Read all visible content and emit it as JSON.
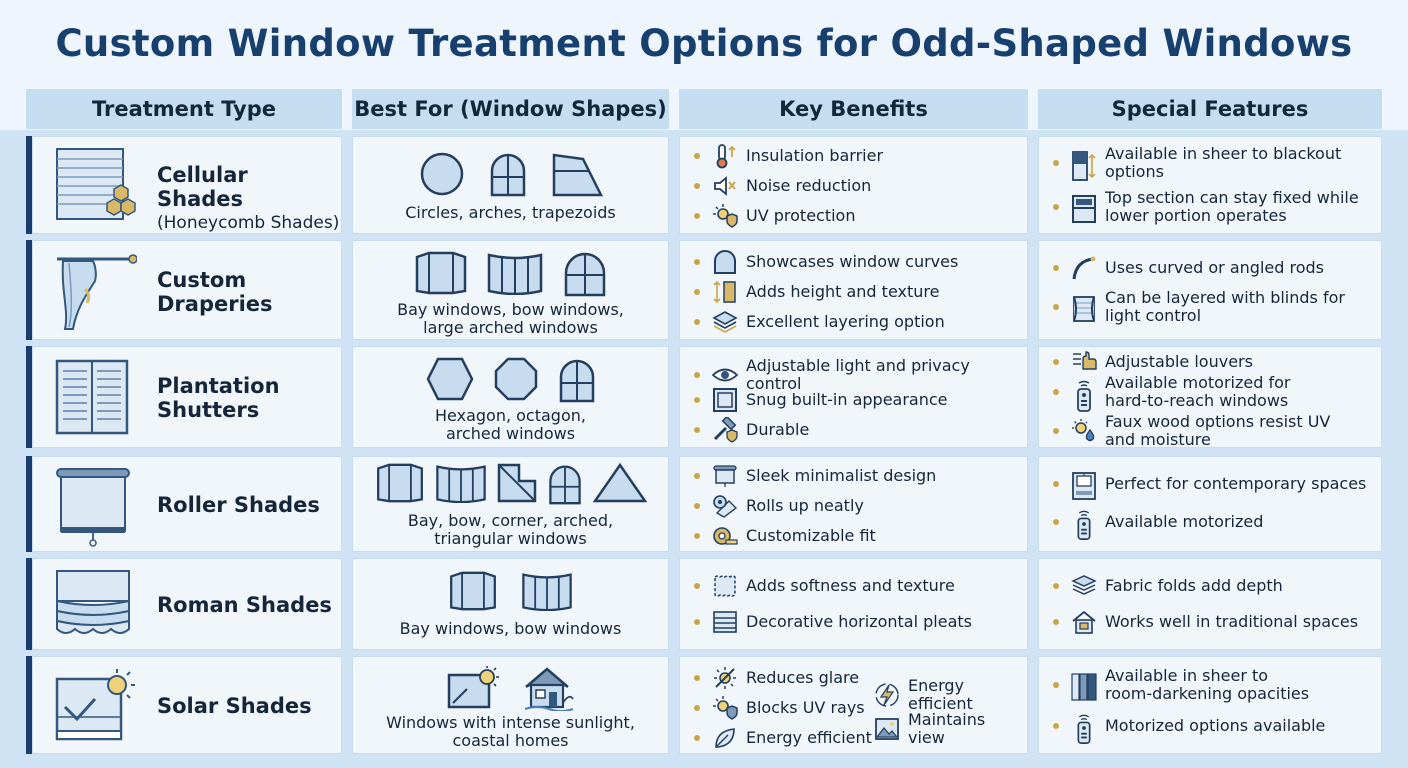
{
  "title": "Custom Window Treatment Options for Odd-Shaped Windows",
  "headers": [
    "Treatment Type",
    "Best For (Window Shapes)",
    "Key Benefits",
    "Special Features"
  ],
  "rows": [
    {
      "name": "Cellular Shades",
      "subname": "(Honeycomb Shades)",
      "shapes_caption": [
        "Circles, arches, trapezoids"
      ],
      "benefits": [
        "Insulation barrier",
        "Noise reduction",
        "UV protection"
      ],
      "features": [
        [
          "Available in sheer to blackout",
          "options"
        ],
        [
          "Top section can stay fixed while",
          "lower portion operates"
        ]
      ]
    },
    {
      "name": "Custom",
      "subname": "Draperies",
      "shapes_caption": [
        "Bay windows, bow windows,",
        "large arched windows"
      ],
      "benefits": [
        "Showcases window curves",
        "Adds height and texture",
        "Excellent layering option"
      ],
      "features": [
        [
          "Uses curved or angled rods"
        ],
        [
          "Can be layered with blinds for",
          "light control"
        ]
      ]
    },
    {
      "name": "Plantation",
      "subname": "Shutters",
      "shapes_caption": [
        "Hexagon, octagon,",
        "arched windows"
      ],
      "benefits": [
        "Adjustable light and privacy control",
        "Snug built-in appearance",
        "Durable"
      ],
      "features": [
        [
          "Adjustable louvers"
        ],
        [
          "Available motorized for",
          "hard-to-reach windows"
        ],
        [
          "Faux wood options resist UV",
          "and moisture"
        ]
      ]
    },
    {
      "name": "Roller Shades",
      "subname": "",
      "shapes_caption": [
        "Bay, bow, corner, arched,",
        "triangular windows"
      ],
      "benefits": [
        "Sleek minimalist design",
        "Rolls up neatly",
        "Customizable fit"
      ],
      "features": [
        [
          "Perfect for contemporary spaces"
        ],
        [
          "Available motorized"
        ]
      ]
    },
    {
      "name": "Roman Shades",
      "subname": "",
      "shapes_caption": [
        "Bay windows, bow windows"
      ],
      "benefits": [
        "Adds softness and texture",
        "Decorative horizontal pleats"
      ],
      "features": [
        [
          "Fabric folds add depth"
        ],
        [
          "Works well in traditional spaces"
        ]
      ]
    },
    {
      "name": "Solar Shades",
      "subname": "",
      "shapes_caption": [
        "Windows with intense sunlight,",
        "coastal homes"
      ],
      "benefits": [
        "Reduces glare",
        "Blocks UV rays",
        "Energy efficient",
        "Energy efficient",
        "Maintains view"
      ],
      "features": [
        [
          "Available in sheer to",
          "room-darkening opacities"
        ],
        [
          "Motorized options available"
        ]
      ]
    }
  ],
  "colors": {
    "title": "#17406f",
    "accent_bar": "#173e6c",
    "bullet": "#c9a54a",
    "header_bg": "#c5ddf1"
  }
}
